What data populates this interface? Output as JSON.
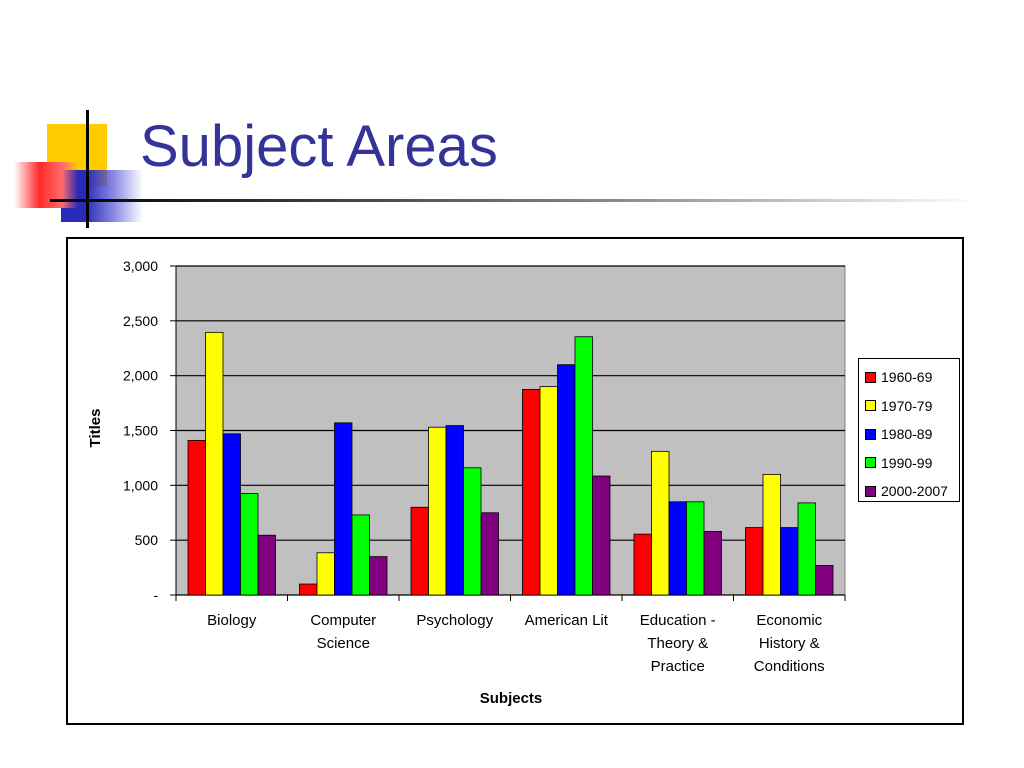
{
  "slide": {
    "title": "Subject Areas"
  },
  "chart_data": {
    "type": "bar",
    "title": "",
    "xlabel": "Subjects",
    "ylabel": "Titles",
    "ylim": [
      0,
      3000
    ],
    "yticks": [
      0,
      500,
      1000,
      1500,
      2000,
      2500,
      3000
    ],
    "ytick_labels": [
      "-",
      "500",
      "1,000",
      "1,500",
      "2,000",
      "2,500",
      "3,000"
    ],
    "categories": [
      [
        "Biology"
      ],
      [
        "Computer",
        "Science"
      ],
      [
        "Psychology"
      ],
      [
        "American Lit"
      ],
      [
        "Education -",
        "Theory &",
        "Practice"
      ],
      [
        "Economic",
        "History &",
        "Conditions"
      ]
    ],
    "series": [
      {
        "name": "1960-69",
        "color": "#ff0000",
        "values": [
          1410,
          100,
          800,
          1875,
          555,
          615
        ]
      },
      {
        "name": "1970-79",
        "color": "#ffff00",
        "values": [
          2395,
          385,
          1530,
          1900,
          1310,
          1100
        ]
      },
      {
        "name": "1980-89",
        "color": "#0000ff",
        "values": [
          1470,
          1570,
          1545,
          2100,
          850,
          615
        ]
      },
      {
        "name": "1990-99",
        "color": "#00ff00",
        "values": [
          925,
          730,
          1160,
          2355,
          850,
          840
        ]
      },
      {
        "name": "2000-2007",
        "color": "#800080",
        "values": [
          545,
          350,
          750,
          1085,
          580,
          270
        ]
      }
    ],
    "plot_background": "#c0c0c0",
    "grid": true,
    "legend_position": "right"
  }
}
